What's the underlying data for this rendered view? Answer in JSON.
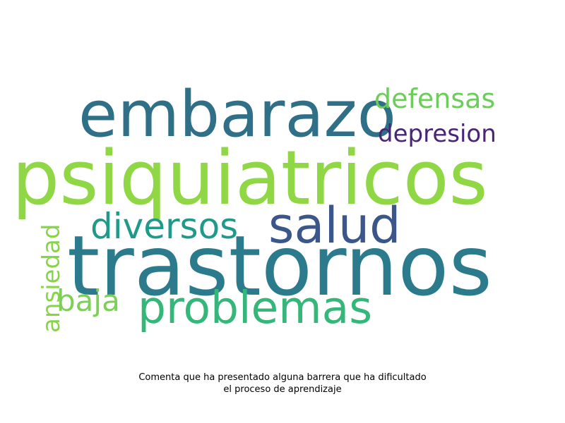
{
  "words": [
    {
      "key": "trastornos",
      "text": "trastornos",
      "color": "#2b7b8c"
    },
    {
      "key": "psiquiatricos",
      "text": "psiquiatricos",
      "color": "#8fd744"
    },
    {
      "key": "embarazo",
      "text": "embarazo",
      "color": "#2f7088"
    },
    {
      "key": "salud",
      "text": "salud",
      "color": "#3b568a"
    },
    {
      "key": "problemas",
      "text": "problemas",
      "color": "#35b779"
    },
    {
      "key": "diversos",
      "text": "diversos",
      "color": "#1f9a8a"
    },
    {
      "key": "baja",
      "text": "baja",
      "color": "#7ccf57"
    },
    {
      "key": "defensas",
      "text": "defensas",
      "color": "#6ccd5a"
    },
    {
      "key": "depresion",
      "text": "depresion",
      "color": "#482576"
    },
    {
      "key": "ansiedad",
      "text": "ansiedad",
      "color": "#86d549"
    }
  ],
  "caption": {
    "line1": "Comenta que ha presentado alguna barrera que ha dificultado",
    "line2": "el proceso de aprendizaje"
  }
}
